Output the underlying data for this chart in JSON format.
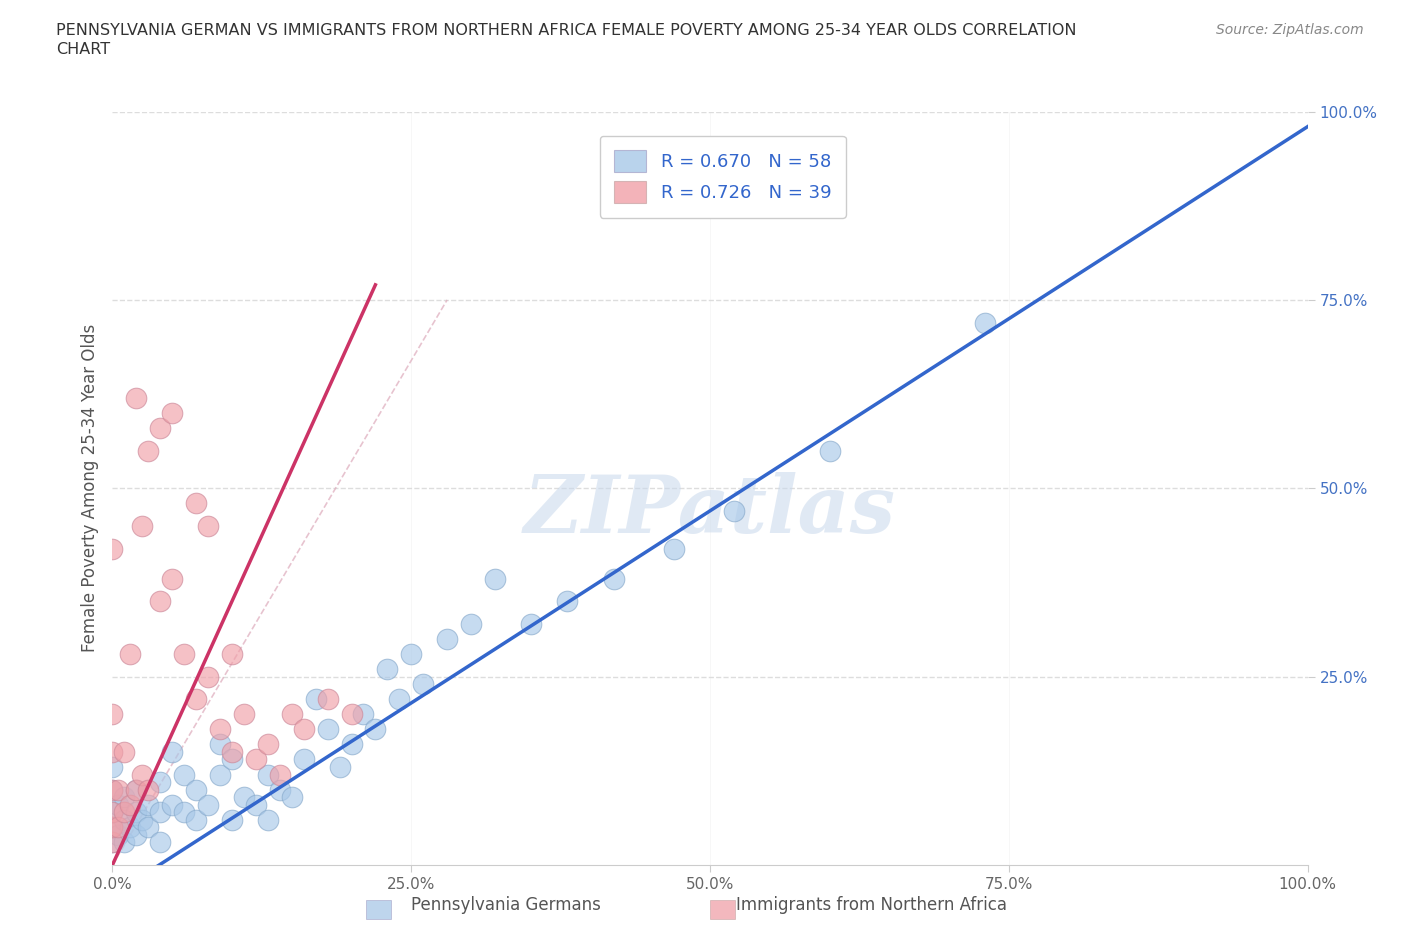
{
  "title_line1": "PENNSYLVANIA GERMAN VS IMMIGRANTS FROM NORTHERN AFRICA FEMALE POVERTY AMONG 25-34 YEAR OLDS CORRELATION",
  "title_line2": "CHART",
  "source_text": "Source: ZipAtlas.com",
  "ylabel": "Female Poverty Among 25-34 Year Olds",
  "xlabel": "",
  "xlim": [
    0,
    1
  ],
  "ylim": [
    0,
    1
  ],
  "xtick_labels": [
    "0.0%",
    "25.0%",
    "50.0%",
    "75.0%",
    "100.0%"
  ],
  "xtick_vals": [
    0,
    0.25,
    0.5,
    0.75,
    1.0
  ],
  "ytick_labels": [
    "25.0%",
    "50.0%",
    "75.0%",
    "100.0%"
  ],
  "ytick_vals": [
    0.25,
    0.5,
    0.75,
    1.0
  ],
  "blue_color": "#a8c8e8",
  "pink_color": "#f0a0a8",
  "blue_line_color": "#3366cc",
  "pink_line_color": "#cc3366",
  "legend_blue_R": "0.670",
  "legend_blue_N": "58",
  "legend_pink_R": "0.726",
  "legend_pink_N": "39",
  "legend_text_color": "#3366cc",
  "watermark_text": "ZIPatlas",
  "blue_line_slope": 1.02,
  "blue_line_intercept": -0.04,
  "pink_line_slope": 3.5,
  "pink_line_intercept": 0.0,
  "pink_line_x_end": 0.22,
  "blue_points_x": [
    0.0,
    0.0,
    0.0,
    0.0,
    0.0,
    0.005,
    0.005,
    0.01,
    0.01,
    0.01,
    0.015,
    0.02,
    0.02,
    0.02,
    0.025,
    0.03,
    0.03,
    0.04,
    0.04,
    0.04,
    0.05,
    0.05,
    0.06,
    0.06,
    0.07,
    0.07,
    0.08,
    0.09,
    0.09,
    0.1,
    0.1,
    0.11,
    0.12,
    0.13,
    0.13,
    0.14,
    0.15,
    0.16,
    0.17,
    0.18,
    0.19,
    0.2,
    0.21,
    0.22,
    0.23,
    0.24,
    0.25,
    0.26,
    0.28,
    0.3,
    0.32,
    0.35,
    0.38,
    0.42,
    0.47,
    0.52,
    0.6,
    0.73
  ],
  "blue_points_y": [
    0.03,
    0.05,
    0.07,
    0.1,
    0.13,
    0.04,
    0.08,
    0.03,
    0.06,
    0.09,
    0.05,
    0.04,
    0.07,
    0.1,
    0.06,
    0.05,
    0.08,
    0.03,
    0.07,
    0.11,
    0.08,
    0.15,
    0.07,
    0.12,
    0.06,
    0.1,
    0.08,
    0.12,
    0.16,
    0.06,
    0.14,
    0.09,
    0.08,
    0.06,
    0.12,
    0.1,
    0.09,
    0.14,
    0.22,
    0.18,
    0.13,
    0.16,
    0.2,
    0.18,
    0.26,
    0.22,
    0.28,
    0.24,
    0.3,
    0.32,
    0.38,
    0.32,
    0.35,
    0.38,
    0.42,
    0.47,
    0.55,
    0.72
  ],
  "pink_points_x": [
    0.0,
    0.0,
    0.0,
    0.0,
    0.0,
    0.0,
    0.0,
    0.005,
    0.005,
    0.01,
    0.01,
    0.015,
    0.015,
    0.02,
    0.02,
    0.025,
    0.025,
    0.03,
    0.03,
    0.04,
    0.04,
    0.05,
    0.05,
    0.06,
    0.07,
    0.07,
    0.08,
    0.08,
    0.09,
    0.1,
    0.1,
    0.11,
    0.12,
    0.13,
    0.14,
    0.15,
    0.16,
    0.18,
    0.2
  ],
  "pink_points_y": [
    0.03,
    0.05,
    0.07,
    0.1,
    0.15,
    0.2,
    0.42,
    0.05,
    0.1,
    0.07,
    0.15,
    0.08,
    0.28,
    0.1,
    0.62,
    0.12,
    0.45,
    0.1,
    0.55,
    0.35,
    0.58,
    0.38,
    0.6,
    0.28,
    0.22,
    0.48,
    0.25,
    0.45,
    0.18,
    0.15,
    0.28,
    0.2,
    0.14,
    0.16,
    0.12,
    0.2,
    0.18,
    0.22,
    0.2
  ],
  "bg_color": "#ffffff",
  "grid_color": "#dddddd",
  "dashed_line_color": "#ddaabb"
}
